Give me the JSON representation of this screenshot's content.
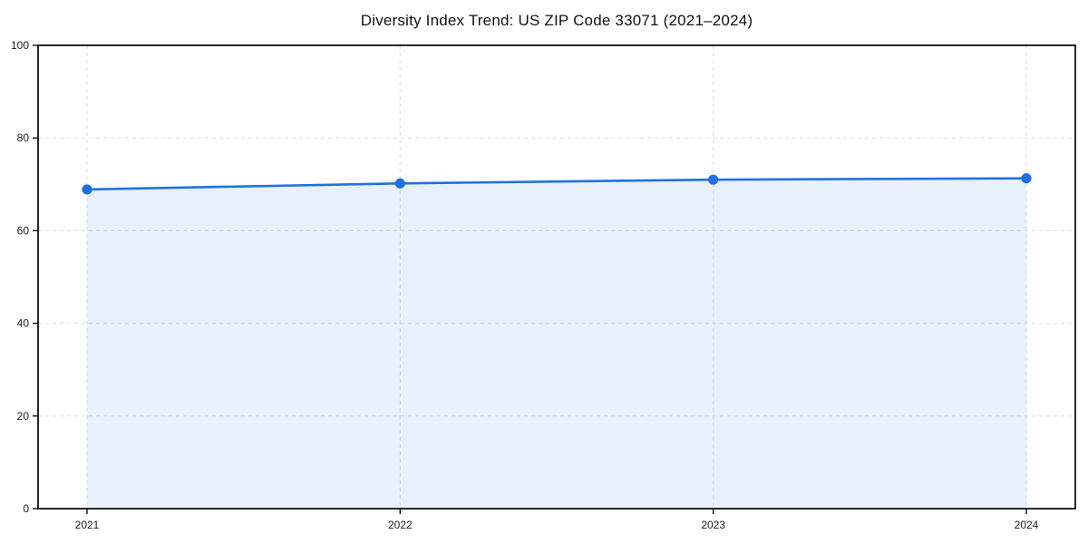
{
  "chart": {
    "title": "Diversity Index Trend: US ZIP Code 33071 (2021–2024)"
  },
  "chart_data": {
    "type": "area",
    "title": "Diversity Index Trend: US ZIP Code 33071 (2021–2024)",
    "categories": [
      "2021",
      "2022",
      "2023",
      "2024"
    ],
    "series": [
      {
        "name": "Diversity Index",
        "values": [
          68.9,
          70.2,
          71.0,
          71.3
        ]
      }
    ],
    "xlabel": "",
    "ylabel": "",
    "ylim": [
      0,
      100
    ],
    "yticks": [
      0,
      20,
      40,
      60,
      80,
      100
    ],
    "grid": true,
    "grid_style": "dashed",
    "legend": "none",
    "line_color": "#2170e0",
    "marker_color": "#2170e0",
    "fill_color": "rgba(33, 112, 224, 0.10)",
    "grid_color": "#e1e1e1",
    "axis_color": "#111111"
  }
}
